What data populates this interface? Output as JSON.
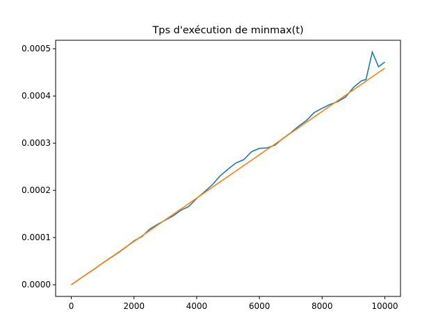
{
  "chart_data": {
    "type": "line",
    "title": "Tps d'exécution de minmax(t)",
    "x": [
      0,
      250,
      500,
      750,
      1000,
      1250,
      1500,
      1750,
      2000,
      2250,
      2500,
      2750,
      3000,
      3250,
      3500,
      3750,
      4000,
      4250,
      4500,
      4750,
      5000,
      5250,
      5500,
      5750,
      6000,
      6250,
      6500,
      6750,
      7000,
      7250,
      7500,
      7750,
      8000,
      8250,
      8500,
      8750,
      9000,
      9250,
      9400,
      9600,
      9800,
      10000
    ],
    "series": [
      {
        "color": "#1f77b4",
        "values": [
          0,
          1.15e-05,
          2.3e-05,
          3.4e-05,
          4.6e-05,
          5.7e-05,
          6.8e-05,
          8e-05,
          9.3e-05,
          0.000102,
          0.000118,
          0.000128,
          0.000137,
          0.000146,
          0.000158,
          0.000166,
          0.000183,
          0.000197,
          0.000212,
          0.000231,
          0.000245,
          0.000258,
          0.000265,
          0.000282,
          0.000289,
          0.00029,
          0.000296,
          0.00031,
          0.000322,
          0.000336,
          0.000348,
          0.000365,
          0.000374,
          0.000382,
          0.000388,
          0.000398,
          0.000418,
          0.000432,
          0.000435,
          0.000493,
          0.000462,
          0.000472
        ]
      },
      {
        "color": "#ff7f0e",
        "values": [
          0,
          1.1475e-05,
          2.295e-05,
          3.4425e-05,
          4.59e-05,
          5.7375e-05,
          6.885e-05,
          8.0325e-05,
          9.18e-05,
          0.000103275,
          0.00011475,
          0.000126225,
          0.0001377,
          0.000149175,
          0.00016065,
          0.000172125,
          0.0001836,
          0.000195075,
          0.00020655,
          0.000218025,
          0.0002295,
          0.000240975,
          0.00025245,
          0.000263925,
          0.0002754,
          0.000286875,
          0.00029835,
          0.000309825,
          0.0003213,
          0.000332775,
          0.00034425,
          0.000355725,
          0.0003672,
          0.000378675,
          0.00039015,
          0.000401625,
          0.0004131,
          0.000424575,
          0.00043146,
          0.00044064,
          0.00044982,
          0.000459
        ]
      }
    ],
    "xlim": [
      -500,
      10500
    ],
    "xticks": [
      0,
      2000,
      4000,
      6000,
      8000,
      10000
    ],
    "ylim": [
      -2.47e-05,
      0.000518
    ],
    "yticks": [
      {
        "value": 0,
        "label": "0.0000"
      },
      {
        "value": 0.0001,
        "label": "0.0001"
      },
      {
        "value": 0.0002,
        "label": "0.0002"
      },
      {
        "value": 0.0003,
        "label": "0.0003"
      },
      {
        "value": 0.0004,
        "label": "0.0004"
      },
      {
        "value": 0.0005,
        "label": "0.0005"
      }
    ]
  }
}
